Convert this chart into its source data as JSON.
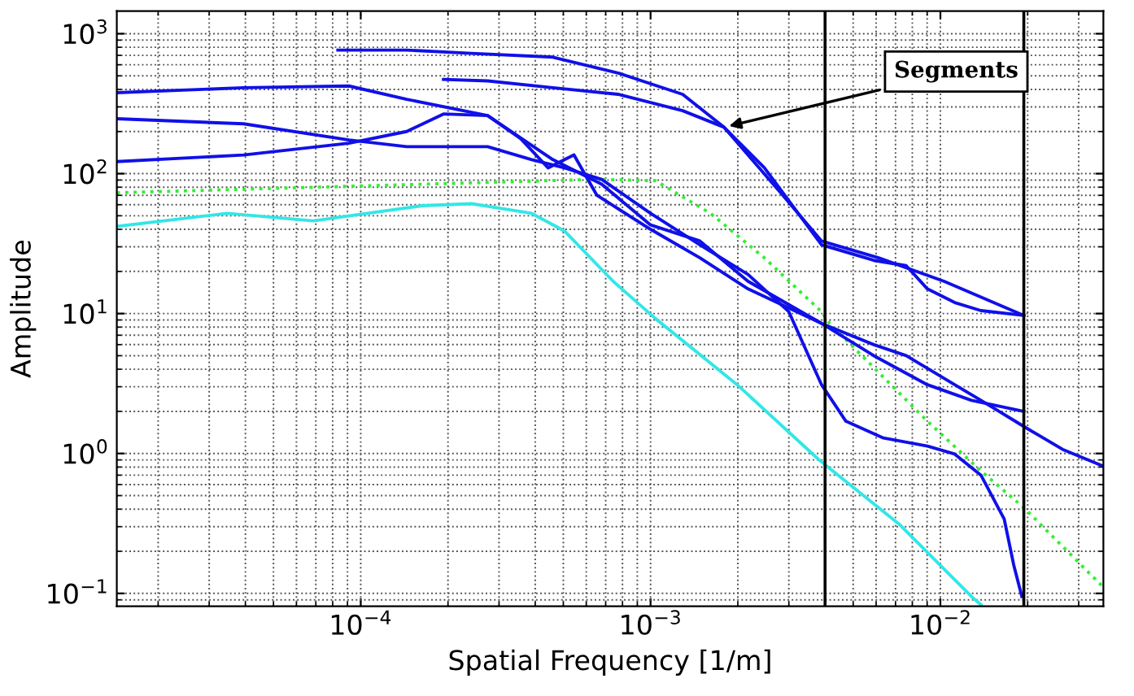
{
  "chart_data": {
    "type": "line",
    "xlabel": "Spatial Frequency [1/m]",
    "ylabel": "Amplitude",
    "log": "xy",
    "grid": true,
    "xlim": [
      1.44e-05,
      0.0365
    ],
    "ylim": [
      0.081,
      1450
    ],
    "xticks": [
      {
        "value": 0.0001,
        "label": "10$^{−4}$"
      },
      {
        "value": 0.001,
        "label": "10$^{−3}$"
      },
      {
        "value": 0.01,
        "label": "10$^{−2}$"
      }
    ],
    "yticks": [
      {
        "value": 0.1,
        "label": "10$^{−1}$"
      },
      {
        "value": 1,
        "label": "10$^{0}$"
      },
      {
        "value": 10,
        "label": "10$^{1}$"
      },
      {
        "value": 100,
        "label": "10$^{2}$"
      },
      {
        "value": 1000,
        "label": "10$^{3}$"
      }
    ],
    "line_style": "solid",
    "marker": "none",
    "series": [
      {
        "color": "#33ee33",
        "line_style": "dotted",
        "x": [
          1.44e-05,
          0.000163,
          0.000653,
          0.00104,
          0.00161,
          0.00247,
          0.00389,
          0.00415,
          0.00902,
          0.0138,
          0.0194,
          0.036
        ],
        "values": [
          73,
          84,
          91,
          89,
          52,
          25,
          10.3,
          8.5,
          1.7,
          0.75,
          0.41,
          0.114
        ]
      },
      {
        "color": "#33e6e6",
        "x": [
          1.44e-05,
          3.46e-05,
          6.87e-05,
          0.000163,
          0.000241,
          0.000389,
          0.000504,
          0.000743,
          0.00104,
          0.00199,
          0.00379,
          0.00724,
          0.0128,
          0.0138
        ],
        "values": [
          42,
          52,
          46,
          59,
          61,
          52,
          39,
          17,
          9.2,
          3.1,
          0.91,
          0.31,
          0.095,
          0.083
        ]
      },
      {
        "color": "#1010e8",
        "x": [
          8.34e-05,
          0.000144,
          0.000241,
          0.00046,
          0.000773,
          0.00129,
          0.00179,
          0.00281,
          0.00389,
          0.00612,
          0.0103,
          0.0194
        ],
        "values": [
          764,
          764,
          724,
          680,
          524,
          369,
          215,
          73,
          33,
          25,
          17,
          9.7
        ]
      },
      {
        "color": "#1010e8",
        "x": [
          0.000193,
          0.000274,
          0.00046,
          0.000773,
          0.00129,
          0.00179,
          0.00247,
          0.00389,
          0.00589,
          0.00762,
          0.00902,
          0.0112,
          0.0138,
          0.0194
        ],
        "values": [
          471,
          460,
          411,
          369,
          282,
          215,
          110,
          31,
          24,
          22,
          15,
          12,
          10.5,
          9.7
        ]
      },
      {
        "color": "#1010e8",
        "x": [
          1.44e-05,
          3.94e-05,
          9.1e-05,
          0.000144,
          0.000274,
          0.00046,
          0.000678,
          0.001,
          0.00148,
          0.00217,
          0.00389,
          0.00589,
          0.00762,
          0.0112,
          0.0138,
          0.0194,
          0.0264,
          0.036
        ],
        "values": [
          379,
          411,
          423,
          340,
          260,
          126,
          84,
          43,
          33,
          17,
          8.5,
          6.0,
          5.0,
          3.1,
          2.4,
          1.56,
          1.07,
          0.82
        ]
      },
      {
        "color": "#1010e8",
        "x": [
          1.44e-05,
          3.94e-05,
          9.1e-05,
          0.000144,
          0.000274,
          0.000389,
          0.000504,
          0.000678,
          0.001,
          0.00148,
          0.00217,
          0.003,
          0.00389,
          0.00472,
          0.00636,
          0.00902,
          0.0112,
          0.0138,
          0.0166,
          0.0179,
          0.0191
        ],
        "values": [
          247,
          227,
          174,
          156,
          156,
          126,
          110,
          91,
          52,
          31,
          19,
          10.3,
          3.1,
          1.7,
          1.29,
          1.13,
          0.99,
          0.7,
          0.34,
          0.16,
          0.095
        ]
      },
      {
        "color": "#1010e8",
        "x": [
          1.44e-05,
          3.94e-05,
          9.1e-05,
          0.000144,
          0.000193,
          0.000274,
          0.000356,
          0.000443,
          0.000544,
          0.000653,
          0.001,
          0.00148,
          0.00217,
          0.00389,
          0.00589,
          0.00902,
          0.0128,
          0.0194
        ],
        "values": [
          122,
          136,
          165,
          200,
          267,
          260,
          178,
          110,
          136,
          70,
          40,
          25,
          15,
          8.5,
          5,
          3.1,
          2.4,
          2.0
        ]
      }
    ],
    "ref_lines": [
      {
        "axis": "x",
        "value": 0.004,
        "color": "#000000"
      },
      {
        "axis": "x",
        "value": 0.0194,
        "color": "#000000"
      }
    ],
    "annotations": [
      {
        "text": "Segments",
        "x": 0.0018,
        "y": 215
      }
    ]
  }
}
